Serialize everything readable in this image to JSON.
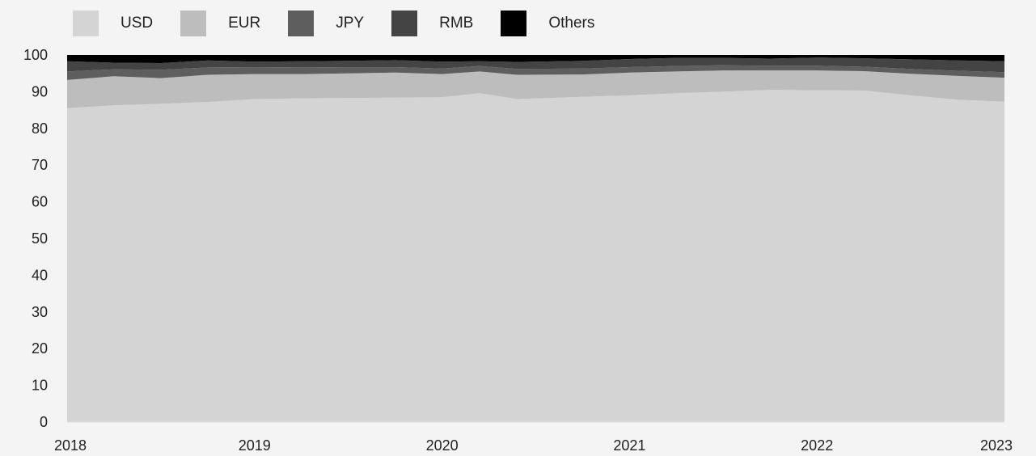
{
  "chart_data": {
    "type": "area",
    "stacked": true,
    "title": "",
    "xlabel": "",
    "ylabel": "",
    "ylim": [
      0,
      100
    ],
    "y_ticks": [
      0,
      10,
      20,
      30,
      40,
      50,
      60,
      70,
      80,
      90,
      100
    ],
    "x_ticks": [
      "2018",
      "2019",
      "2020",
      "2021",
      "2022",
      "2023"
    ],
    "legend_position": "top-left",
    "grid": false,
    "x": [
      2018.0,
      2018.25,
      2018.5,
      2018.75,
      2019.0,
      2019.25,
      2019.5,
      2019.75,
      2020.0,
      2020.2,
      2020.4,
      2020.75,
      2021.0,
      2021.25,
      2021.5,
      2021.75,
      2022.0,
      2022.25,
      2022.5,
      2022.75,
      2023.0
    ],
    "series": [
      {
        "name": "USD",
        "color": "#d4d4d4",
        "values": [
          85.5,
          86.3,
          86.7,
          87.2,
          88.0,
          88.2,
          88.3,
          88.4,
          88.5,
          89.6,
          88.0,
          88.6,
          89.0,
          89.6,
          90.0,
          90.5,
          90.4,
          90.3,
          89.0,
          87.8,
          87.3
        ]
      },
      {
        "name": "EUR",
        "color": "#bdbdbd",
        "values": [
          7.7,
          7.9,
          7.0,
          7.4,
          6.8,
          6.6,
          6.7,
          6.8,
          6.3,
          5.9,
          6.6,
          6.1,
          6.2,
          5.9,
          5.8,
          5.3,
          5.4,
          5.3,
          5.9,
          6.5,
          6.5
        ]
      },
      {
        "name": "JPY",
        "color": "#5e5e5e",
        "values": [
          2.3,
          1.9,
          2.3,
          2.0,
          1.9,
          1.8,
          1.7,
          1.5,
          1.5,
          1.5,
          1.6,
          1.6,
          1.5,
          1.5,
          1.4,
          1.3,
          1.3,
          1.2,
          1.3,
          1.4,
          1.5
        ]
      },
      {
        "name": "RMB",
        "color": "#444444",
        "values": [
          2.8,
          1.8,
          1.8,
          1.9,
          1.5,
          1.7,
          1.7,
          1.9,
          1.9,
          1.3,
          1.9,
          2.1,
          2.2,
          2.2,
          2.0,
          1.9,
          2.2,
          2.3,
          2.6,
          2.8,
          3.0
        ]
      },
      {
        "name": "Others",
        "color": "#000000",
        "values": [
          1.7,
          2.1,
          2.2,
          1.5,
          1.8,
          1.7,
          1.6,
          1.4,
          1.8,
          1.7,
          1.9,
          1.6,
          1.1,
          0.8,
          0.8,
          1.0,
          0.7,
          0.9,
          1.2,
          1.5,
          1.7
        ]
      }
    ]
  }
}
